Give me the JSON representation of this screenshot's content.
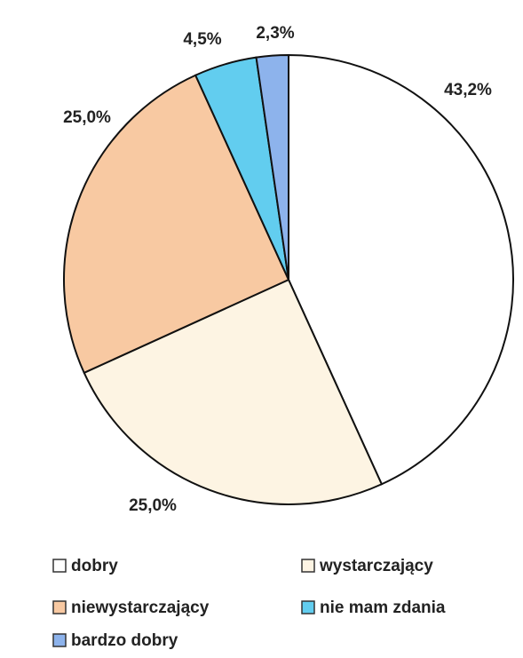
{
  "chart_data": {
    "type": "pie",
    "categories": [
      "dobry",
      "wystarczający",
      "niewystarczający",
      "nie mam zdania",
      "bardzo dobry"
    ],
    "values": [
      43.2,
      25.0,
      25.0,
      4.5,
      2.3
    ],
    "value_labels": [
      "43,2%",
      "25,0%",
      "25,0%",
      "4,5%",
      "2,3%"
    ],
    "colors": [
      "#ffffff",
      "#fdf4e3",
      "#f8c9a2",
      "#62cdef",
      "#8db3ec"
    ],
    "legend": "bottom"
  }
}
